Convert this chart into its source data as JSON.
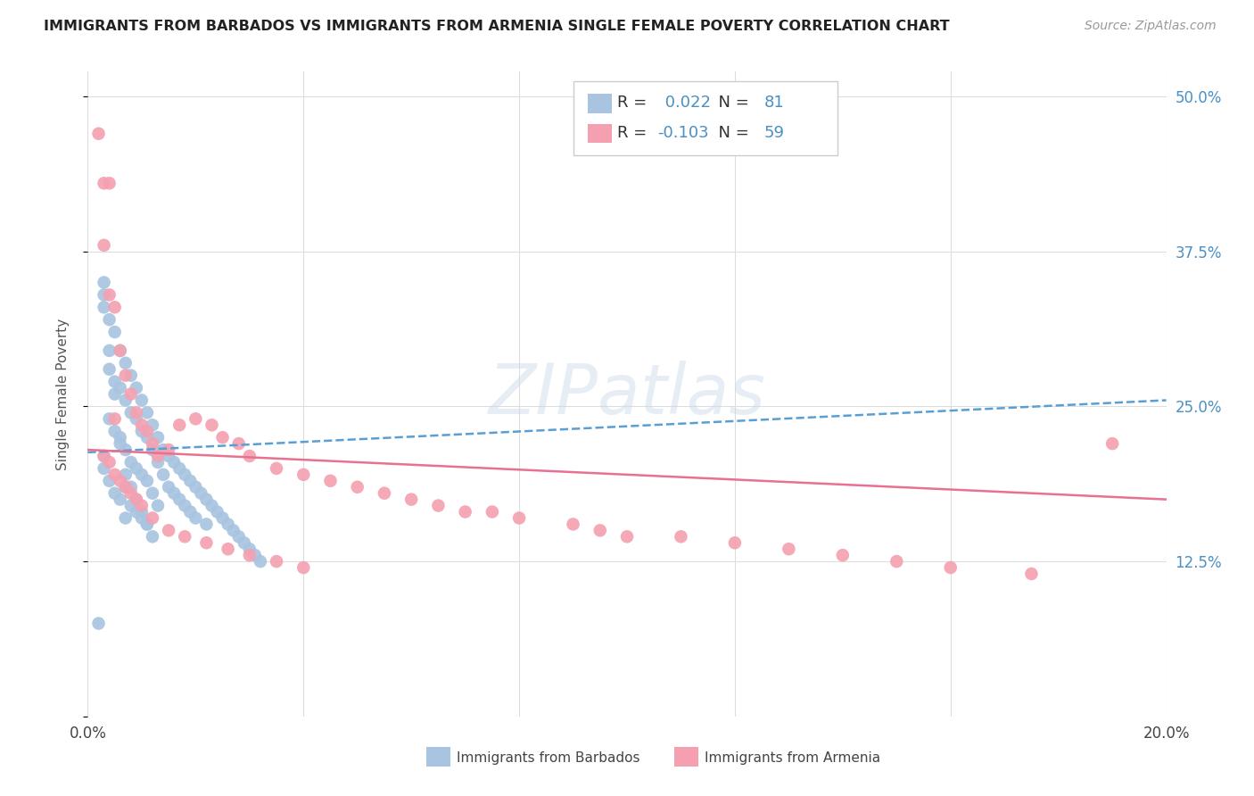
{
  "title": "IMMIGRANTS FROM BARBADOS VS IMMIGRANTS FROM ARMENIA SINGLE FEMALE POVERTY CORRELATION CHART",
  "source": "Source: ZipAtlas.com",
  "ylabel": "Single Female Poverty",
  "xlim": [
    0.0,
    0.2
  ],
  "ylim": [
    0.0,
    0.52
  ],
  "xtick_vals": [
    0.0,
    0.04,
    0.08,
    0.12,
    0.16,
    0.2
  ],
  "xtick_labels": [
    "0.0%",
    "",
    "",
    "",
    "",
    "20.0%"
  ],
  "ytick_vals": [
    0.0,
    0.125,
    0.25,
    0.375,
    0.5
  ],
  "ytick_labels_right": [
    "",
    "12.5%",
    "25.0%",
    "37.5%",
    "50.0%"
  ],
  "barbados_color": "#a8c4e0",
  "armenia_color": "#f4a0b0",
  "barbados_R": 0.022,
  "barbados_N": 81,
  "armenia_R": -0.103,
  "armenia_N": 59,
  "barbados_line_color": "#5a9fd4",
  "armenia_line_color": "#e87090",
  "watermark": "ZIPatlas",
  "background_color": "#ffffff",
  "grid_color": "#dddddd",
  "tick_label_color": "#4a90c4",
  "barbados_x": [
    0.002,
    0.003,
    0.003,
    0.003,
    0.004,
    0.004,
    0.004,
    0.004,
    0.005,
    0.005,
    0.005,
    0.005,
    0.006,
    0.006,
    0.006,
    0.006,
    0.007,
    0.007,
    0.007,
    0.007,
    0.007,
    0.008,
    0.008,
    0.008,
    0.008,
    0.009,
    0.009,
    0.009,
    0.009,
    0.01,
    0.01,
    0.01,
    0.01,
    0.011,
    0.011,
    0.011,
    0.011,
    0.012,
    0.012,
    0.012,
    0.013,
    0.013,
    0.013,
    0.014,
    0.014,
    0.015,
    0.015,
    0.016,
    0.016,
    0.017,
    0.017,
    0.018,
    0.018,
    0.019,
    0.019,
    0.02,
    0.02,
    0.021,
    0.022,
    0.022,
    0.023,
    0.024,
    0.025,
    0.026,
    0.027,
    0.028,
    0.029,
    0.03,
    0.031,
    0.032,
    0.003,
    0.003,
    0.004,
    0.005,
    0.006,
    0.007,
    0.008,
    0.009,
    0.01,
    0.011,
    0.012
  ],
  "barbados_y": [
    0.075,
    0.35,
    0.34,
    0.2,
    0.32,
    0.28,
    0.24,
    0.19,
    0.31,
    0.27,
    0.23,
    0.18,
    0.295,
    0.265,
    0.225,
    0.175,
    0.285,
    0.255,
    0.215,
    0.185,
    0.16,
    0.275,
    0.245,
    0.205,
    0.17,
    0.265,
    0.24,
    0.2,
    0.165,
    0.255,
    0.23,
    0.195,
    0.16,
    0.245,
    0.225,
    0.19,
    0.155,
    0.235,
    0.215,
    0.18,
    0.225,
    0.205,
    0.17,
    0.215,
    0.195,
    0.21,
    0.185,
    0.205,
    0.18,
    0.2,
    0.175,
    0.195,
    0.17,
    0.19,
    0.165,
    0.185,
    0.16,
    0.18,
    0.175,
    0.155,
    0.17,
    0.165,
    0.16,
    0.155,
    0.15,
    0.145,
    0.14,
    0.135,
    0.13,
    0.125,
    0.33,
    0.21,
    0.295,
    0.26,
    0.22,
    0.195,
    0.185,
    0.175,
    0.165,
    0.155,
    0.145
  ],
  "armenia_x": [
    0.002,
    0.003,
    0.003,
    0.004,
    0.004,
    0.005,
    0.005,
    0.006,
    0.007,
    0.008,
    0.009,
    0.01,
    0.011,
    0.012,
    0.013,
    0.015,
    0.017,
    0.02,
    0.023,
    0.025,
    0.028,
    0.03,
    0.035,
    0.04,
    0.045,
    0.05,
    0.055,
    0.06,
    0.065,
    0.07,
    0.075,
    0.08,
    0.09,
    0.095,
    0.1,
    0.11,
    0.12,
    0.13,
    0.14,
    0.15,
    0.16,
    0.175,
    0.19,
    0.003,
    0.004,
    0.005,
    0.006,
    0.007,
    0.008,
    0.009,
    0.01,
    0.012,
    0.015,
    0.018,
    0.022,
    0.026,
    0.03,
    0.035,
    0.04
  ],
  "armenia_y": [
    0.47,
    0.43,
    0.38,
    0.43,
    0.34,
    0.33,
    0.24,
    0.295,
    0.275,
    0.26,
    0.245,
    0.235,
    0.23,
    0.22,
    0.21,
    0.215,
    0.235,
    0.24,
    0.235,
    0.225,
    0.22,
    0.21,
    0.2,
    0.195,
    0.19,
    0.185,
    0.18,
    0.175,
    0.17,
    0.165,
    0.165,
    0.16,
    0.155,
    0.15,
    0.145,
    0.145,
    0.14,
    0.135,
    0.13,
    0.125,
    0.12,
    0.115,
    0.22,
    0.21,
    0.205,
    0.195,
    0.19,
    0.185,
    0.18,
    0.175,
    0.17,
    0.16,
    0.15,
    0.145,
    0.14,
    0.135,
    0.13,
    0.125,
    0.12
  ],
  "barb_line_x0": 0.0,
  "barb_line_x1": 0.2,
  "barb_line_y0": 0.213,
  "barb_line_y1": 0.255,
  "arm_line_x0": 0.0,
  "arm_line_x1": 0.2,
  "arm_line_y0": 0.215,
  "arm_line_y1": 0.175
}
